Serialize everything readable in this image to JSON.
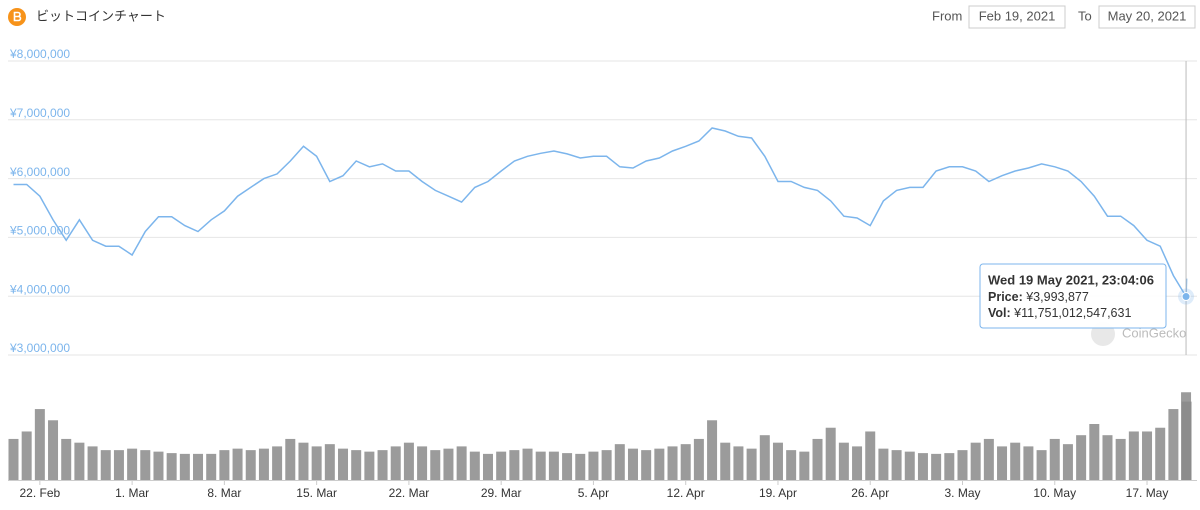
{
  "header": {
    "title": "ビットコインチャート",
    "from_label": "From",
    "from_date": "Feb 19, 2021",
    "to_label": "To",
    "to_date": "May 20, 2021"
  },
  "watermark": "CoinGecko",
  "tooltip": {
    "title": "Wed 19 May 2021, 23:04:06",
    "price_label": "Price:",
    "price": "¥3,993,877",
    "vol_label": "Vol:",
    "vol": "¥11,751,012,547,631"
  },
  "chart_data": {
    "type": "line",
    "x": [
      "2021-02-20",
      "2021-02-21",
      "2021-02-22",
      "2021-02-23",
      "2021-02-24",
      "2021-02-25",
      "2021-02-26",
      "2021-02-27",
      "2021-02-28",
      "2021-03-01",
      "2021-03-02",
      "2021-03-03",
      "2021-03-04",
      "2021-03-05",
      "2021-03-06",
      "2021-03-07",
      "2021-03-08",
      "2021-03-09",
      "2021-03-10",
      "2021-03-11",
      "2021-03-12",
      "2021-03-13",
      "2021-03-14",
      "2021-03-15",
      "2021-03-16",
      "2021-03-17",
      "2021-03-18",
      "2021-03-19",
      "2021-03-20",
      "2021-03-21",
      "2021-03-22",
      "2021-03-23",
      "2021-03-24",
      "2021-03-25",
      "2021-03-26",
      "2021-03-27",
      "2021-03-28",
      "2021-03-29",
      "2021-03-30",
      "2021-03-31",
      "2021-04-01",
      "2021-04-02",
      "2021-04-03",
      "2021-04-04",
      "2021-04-05",
      "2021-04-06",
      "2021-04-07",
      "2021-04-08",
      "2021-04-09",
      "2021-04-10",
      "2021-04-11",
      "2021-04-12",
      "2021-04-13",
      "2021-04-14",
      "2021-04-15",
      "2021-04-16",
      "2021-04-17",
      "2021-04-18",
      "2021-04-19",
      "2021-04-20",
      "2021-04-21",
      "2021-04-22",
      "2021-04-23",
      "2021-04-24",
      "2021-04-25",
      "2021-04-26",
      "2021-04-27",
      "2021-04-28",
      "2021-04-29",
      "2021-04-30",
      "2021-05-01",
      "2021-05-02",
      "2021-05-03",
      "2021-05-04",
      "2021-05-05",
      "2021-05-06",
      "2021-05-07",
      "2021-05-08",
      "2021-05-09",
      "2021-05-10",
      "2021-05-11",
      "2021-05-12",
      "2021-05-13",
      "2021-05-14",
      "2021-05-15",
      "2021-05-16",
      "2021-05-17",
      "2021-05-18",
      "2021-05-19",
      "2021-05-19T23:04:06",
      "2021-05-20"
    ],
    "series": [
      {
        "color": "#7cb5ec",
        "values": [
          5900000,
          5900000,
          5700000,
          5300000,
          4950000,
          5300000,
          4950000,
          4850000,
          4850000,
          4700000,
          5100000,
          5350000,
          5350000,
          5200000,
          5100000,
          5300000,
          5450000,
          5700000,
          5850000,
          6000000,
          6080000,
          6300000,
          6550000,
          6380000,
          5950000,
          6050000,
          6300000,
          6200000,
          6250000,
          6130000,
          6130000,
          5950000,
          5800000,
          5700000,
          5600000,
          5850000,
          5950000,
          6130000,
          6300000,
          6380000,
          6430000,
          6470000,
          6420000,
          6350000,
          6380000,
          6380000,
          6200000,
          6180000,
          6300000,
          6350000,
          6470000,
          6550000,
          6640000,
          6860000,
          6810000,
          6720000,
          6690000,
          6380000,
          5950000,
          5950000,
          5850000,
          5800000,
          5620000,
          5360000,
          5330000,
          5200000,
          5620000,
          5800000,
          5850000,
          5850000,
          6130000,
          6200000,
          6200000,
          6130000,
          5950000,
          6050000,
          6130000,
          6180000,
          6250000,
          6200000,
          6130000,
          5950000,
          5700000,
          5360000,
          5360000,
          5200000,
          4950000,
          4850000,
          4350000,
          3993877,
          4300000
        ]
      },
      {
        "color": "#8a8a8a",
        "axis": "y2",
        "values": [
          5500000000000,
          6500000000000,
          9500000000000,
          8000000000000,
          5500000000000,
          5000000000000,
          4500000000000,
          4000000000000,
          4000000000000,
          4200000000000,
          4000000000000,
          3800000000000,
          3600000000000,
          3500000000000,
          3500000000000,
          3500000000000,
          4000000000000,
          4200000000000,
          4000000000000,
          4200000000000,
          4500000000000,
          5500000000000,
          5000000000000,
          4500000000000,
          4800000000000,
          4200000000000,
          4000000000000,
          3800000000000,
          4000000000000,
          4500000000000,
          5000000000000,
          4500000000000,
          4000000000000,
          4200000000000,
          4500000000000,
          3800000000000,
          3500000000000,
          3800000000000,
          4000000000000,
          4200000000000,
          3800000000000,
          3800000000000,
          3600000000000,
          3500000000000,
          3800000000000,
          4000000000000,
          4800000000000,
          4200000000000,
          4000000000000,
          4200000000000,
          4500000000000,
          4800000000000,
          5500000000000,
          8000000000000,
          5000000000000,
          4500000000000,
          4200000000000,
          6000000000000,
          5000000000000,
          4000000000000,
          3800000000000,
          5500000000000,
          7000000000000,
          5000000000000,
          4500000000000,
          6500000000000,
          4200000000000,
          4000000000000,
          3800000000000,
          3600000000000,
          3500000000000,
          3600000000000,
          4000000000000,
          5000000000000,
          5500000000000,
          4500000000000,
          5000000000000,
          4500000000000,
          4000000000000,
          5500000000000,
          4800000000000,
          6000000000000,
          7500000000000,
          6000000000000,
          5500000000000,
          6500000000000,
          6500000000000,
          7000000000000,
          9500000000000,
          11751012547631,
          10500000000000
        ]
      }
    ],
    "xlim": [
      "2021-02-19T14:00:00",
      "2021-05-20T19:00:00"
    ],
    "xticks": [
      {
        "value": "2021-02-22",
        "label": "22. Feb"
      },
      {
        "value": "2021-03-01",
        "label": "1. Mar"
      },
      {
        "value": "2021-03-08",
        "label": "8. Mar"
      },
      {
        "value": "2021-03-15",
        "label": "15. Mar"
      },
      {
        "value": "2021-03-22",
        "label": "22. Mar"
      },
      {
        "value": "2021-03-29",
        "label": "29. Mar"
      },
      {
        "value": "2021-04-05",
        "label": "5. Apr"
      },
      {
        "value": "2021-04-12",
        "label": "12. Apr"
      },
      {
        "value": "2021-04-19",
        "label": "19. Apr"
      },
      {
        "value": "2021-04-26",
        "label": "26. Apr"
      },
      {
        "value": "2021-05-03",
        "label": "3. May"
      },
      {
        "value": "2021-05-10",
        "label": "10. May"
      },
      {
        "value": "2021-05-17",
        "label": "17. May"
      }
    ],
    "ylim": [
      3000000,
      8000000
    ],
    "yticks": [
      {
        "value": 3000000,
        "label": "¥3,000,000"
      },
      {
        "value": 4000000,
        "label": "¥4,000,000"
      },
      {
        "value": 5000000,
        "label": "¥5,000,000"
      },
      {
        "value": 6000000,
        "label": "¥6,000,000"
      },
      {
        "value": 7000000,
        "label": "¥7,000,000"
      },
      {
        "value": 8000000,
        "label": "¥8,000,000"
      }
    ],
    "y2lim": [
      0,
      15000000000000
    ],
    "grid": true
  }
}
